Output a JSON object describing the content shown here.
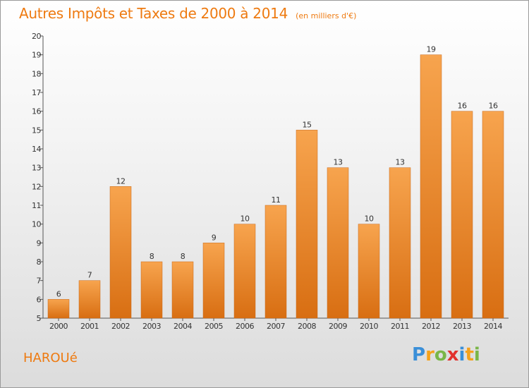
{
  "chart_data": {
    "type": "bar",
    "title": "Autres Impôts et Taxes de 2000 à 2014",
    "subtitle": "(en milliers d'€)",
    "categories": [
      "2000",
      "2001",
      "2002",
      "2003",
      "2004",
      "2005",
      "2006",
      "2007",
      "2008",
      "2009",
      "2010",
      "2011",
      "2012",
      "2013",
      "2014"
    ],
    "values": [
      6,
      7,
      12,
      8,
      8,
      9,
      10,
      11,
      15,
      13,
      10,
      13,
      19,
      16,
      16
    ],
    "ylim": [
      5,
      20
    ],
    "yticks": [
      5,
      6,
      7,
      8,
      9,
      10,
      11,
      12,
      13,
      14,
      15,
      16,
      17,
      18,
      19,
      20
    ],
    "xlabel": "",
    "ylabel": "",
    "grid": false,
    "bar_color": "#f08c2c"
  },
  "commune": "HAROUé",
  "brand": {
    "letters": [
      "P",
      "r",
      "o",
      "x",
      "i",
      "t",
      "i"
    ],
    "colors": [
      "#3a8fd8",
      "#f5a21b",
      "#7ab648",
      "#e2312d",
      "#3a8fd8",
      "#f5a21b",
      "#7ab648"
    ]
  }
}
